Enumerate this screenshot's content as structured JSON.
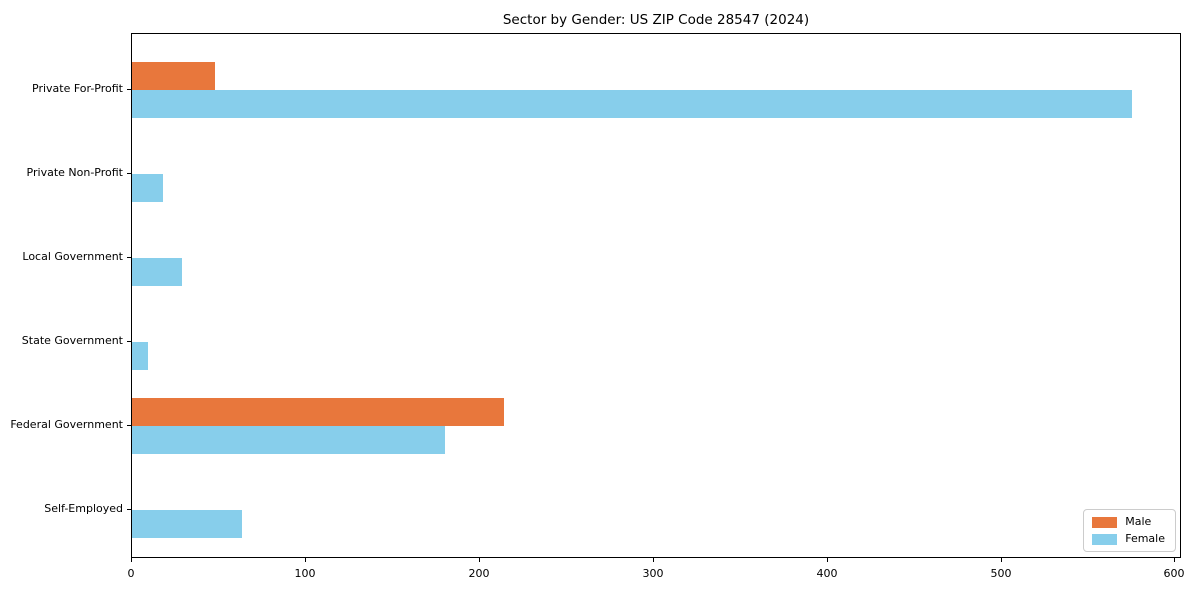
{
  "chart_data": {
    "type": "bar",
    "orientation": "horizontal",
    "title": "Sector by Gender: US ZIP Code 28547 (2024)",
    "categories": [
      "Private For-Profit",
      "Private Non-Profit",
      "Local Government",
      "State Government",
      "Federal Government",
      "Self-Employed"
    ],
    "series": [
      {
        "name": "Male",
        "color": "#E8773C",
        "values": [
          48,
          0,
          0,
          0,
          214,
          0
        ]
      },
      {
        "name": "Female",
        "color": "#87CEEB",
        "values": [
          575,
          18,
          29,
          9,
          180,
          63
        ]
      }
    ],
    "xlabel": "",
    "ylabel": "",
    "xlim": [
      0,
      603.75
    ],
    "xticks": [
      0,
      100,
      200,
      300,
      400,
      500,
      600
    ],
    "grid": false,
    "legend_position": "lower right",
    "background_color": "#ffffff",
    "spine_color": "#000000"
  }
}
